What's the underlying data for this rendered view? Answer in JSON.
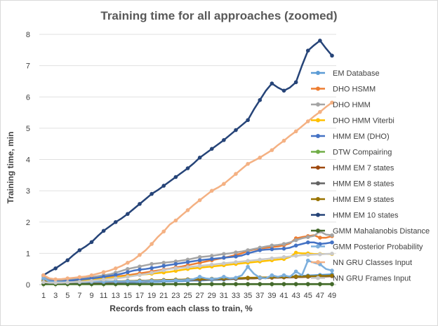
{
  "chart_data": {
    "type": "line",
    "title": "Training time for all approaches (zoomed)",
    "xlabel": "Records from each class to train, %",
    "ylabel": "Training time, min",
    "ylim": [
      0,
      8
    ],
    "yticks": [
      0,
      1,
      2,
      3,
      4,
      5,
      6,
      7,
      8
    ],
    "x": [
      1,
      2,
      3,
      4,
      5,
      6,
      7,
      8,
      9,
      10,
      11,
      12,
      13,
      14,
      15,
      16,
      17,
      18,
      19,
      20,
      21,
      22,
      23,
      24,
      25,
      26,
      27,
      28,
      29,
      30,
      31,
      32,
      33,
      34,
      35,
      36,
      37,
      38,
      39,
      40,
      41,
      42,
      43,
      44,
      45,
      46,
      47,
      48,
      49
    ],
    "xtick_labels": [
      "1",
      "3",
      "5",
      "7",
      "9",
      "11",
      "13",
      "15",
      "17",
      "19",
      "21",
      "23",
      "25",
      "27",
      "29",
      "31",
      "33",
      "35",
      "37",
      "39",
      "41",
      "43",
      "45",
      "47",
      "49"
    ],
    "grid": "horizontal",
    "legend_position": "right",
    "series": [
      {
        "name": "EM Database",
        "color": "#5b9bd5",
        "values": [
          0.12,
          0.05,
          0.03,
          0.03,
          0.03,
          0.03,
          0.03,
          0.03,
          0.04,
          0.04,
          0.05,
          0.05,
          0.05,
          0.06,
          0.07,
          0.07,
          0.08,
          0.08,
          0.09,
          0.09,
          0.1,
          0.1,
          0.11,
          0.11,
          0.12,
          0.13,
          0.13,
          0.14,
          0.15,
          0.15,
          0.16,
          0.17,
          0.18,
          0.19,
          0.2,
          0.2,
          0.21,
          0.22,
          0.23,
          0.24,
          0.25,
          0.26,
          0.27,
          0.28,
          0.29,
          0.3,
          0.31,
          0.32,
          0.33
        ]
      },
      {
        "name": "DHO HSMM",
        "color": "#ed7d31",
        "values": [
          0.3,
          0.15,
          0.12,
          0.12,
          0.13,
          0.14,
          0.15,
          0.17,
          0.19,
          0.2,
          0.22,
          0.24,
          0.26,
          0.28,
          0.3,
          0.33,
          0.36,
          0.39,
          0.42,
          0.45,
          0.48,
          0.51,
          0.55,
          0.58,
          0.62,
          0.66,
          0.7,
          0.74,
          0.78,
          0.82,
          0.86,
          0.9,
          0.95,
          1.0,
          1.08,
          1.12,
          1.15,
          1.18,
          1.2,
          1.22,
          1.26,
          1.32,
          1.48,
          1.52,
          1.55,
          1.58,
          1.5,
          1.5,
          1.55
        ]
      },
      {
        "name": "DHO HMM",
        "color": "#a5a5a5",
        "values": [
          0.25,
          0.15,
          0.15,
          0.16,
          0.17,
          0.18,
          0.2,
          0.22,
          0.24,
          0.27,
          0.3,
          0.33,
          0.38,
          0.44,
          0.5,
          0.54,
          0.58,
          0.62,
          0.66,
          0.68,
          0.7,
          0.72,
          0.74,
          0.77,
          0.8,
          0.84,
          0.88,
          0.9,
          0.92,
          0.95,
          0.98,
          1.0,
          1.03,
          1.06,
          1.1,
          1.14,
          1.18,
          1.22,
          1.25,
          1.27,
          1.3,
          1.35,
          1.42,
          1.48,
          1.52,
          1.56,
          1.7,
          1.6,
          1.58
        ]
      },
      {
        "name": "DHO HMM Viterbi",
        "color": "#ffc000",
        "values": [
          0.15,
          0.1,
          0.1,
          0.1,
          0.11,
          0.12,
          0.13,
          0.14,
          0.15,
          0.17,
          0.19,
          0.21,
          0.23,
          0.25,
          0.27,
          0.29,
          0.31,
          0.33,
          0.35,
          0.37,
          0.39,
          0.41,
          0.44,
          0.47,
          0.5,
          0.52,
          0.54,
          0.56,
          0.58,
          0.6,
          0.62,
          0.64,
          0.66,
          0.68,
          0.7,
          0.72,
          0.74,
          0.76,
          0.78,
          0.8,
          0.82,
          0.88,
          1.02,
          1.0,
          1.0,
          0.98,
          0.98,
          0.98,
          0.98
        ]
      },
      {
        "name": "HMM EM (DHO)",
        "color": "#4472c4",
        "values": [
          0.18,
          0.12,
          0.1,
          0.1,
          0.12,
          0.14,
          0.16,
          0.18,
          0.2,
          0.22,
          0.25,
          0.28,
          0.31,
          0.35,
          0.4,
          0.45,
          0.48,
          0.5,
          0.53,
          0.56,
          0.6,
          0.63,
          0.66,
          0.69,
          0.72,
          0.75,
          0.78,
          0.8,
          0.82,
          0.84,
          0.86,
          0.88,
          0.9,
          0.93,
          1.0,
          1.05,
          1.1,
          1.12,
          1.13,
          1.14,
          1.15,
          1.18,
          1.25,
          1.3,
          1.35,
          1.35,
          1.3,
          1.32,
          1.35
        ]
      },
      {
        "name": "DTW Compairing",
        "color": "#70ad47",
        "values": [
          0.01,
          0.01,
          0.01,
          0.01,
          0.01,
          0.01,
          0.01,
          0.01,
          0.01,
          0.01,
          0.01,
          0.01,
          0.01,
          0.01,
          0.01,
          0.01,
          0.01,
          0.01,
          0.01,
          0.01,
          0.01,
          0.01,
          0.01,
          0.01,
          0.01,
          0.01,
          0.01,
          0.01,
          0.01,
          0.01,
          0.01,
          0.01,
          0.01,
          0.01,
          0.01,
          0.01,
          0.01,
          0.01,
          0.01,
          0.01,
          0.01,
          0.01,
          0.01,
          0.01,
          0.01,
          0.01,
          0.01,
          0.01,
          0.01
        ]
      },
      {
        "name": "HMM EM 7 states",
        "color": "#9e480e",
        "values": [
          0.1,
          0.06,
          0.05,
          0.05,
          0.05,
          0.06,
          0.06,
          0.06,
          0.07,
          0.07,
          0.08,
          0.08,
          0.09,
          0.09,
          0.1,
          0.1,
          0.11,
          0.11,
          0.12,
          0.12,
          0.13,
          0.13,
          0.14,
          0.14,
          0.15,
          0.15,
          0.16,
          0.16,
          0.17,
          0.17,
          0.18,
          0.18,
          0.19,
          0.19,
          0.2,
          0.2,
          0.21,
          0.21,
          0.22,
          0.22,
          0.23,
          0.23,
          0.24,
          0.24,
          0.25,
          0.25,
          0.26,
          0.26,
          0.27
        ]
      },
      {
        "name": "HMM EM 8 states",
        "color": "#636363",
        "values": [
          0.11,
          0.07,
          0.06,
          0.06,
          0.06,
          0.07,
          0.07,
          0.07,
          0.08,
          0.08,
          0.09,
          0.09,
          0.1,
          0.1,
          0.11,
          0.11,
          0.12,
          0.12,
          0.13,
          0.13,
          0.14,
          0.14,
          0.15,
          0.15,
          0.16,
          0.16,
          0.17,
          0.17,
          0.18,
          0.18,
          0.19,
          0.19,
          0.2,
          0.2,
          0.21,
          0.21,
          0.22,
          0.22,
          0.23,
          0.23,
          0.24,
          0.24,
          0.25,
          0.25,
          0.26,
          0.26,
          0.27,
          0.27,
          0.28
        ]
      },
      {
        "name": "HMM EM 9 states",
        "color": "#997300",
        "values": [
          0.12,
          0.08,
          0.07,
          0.07,
          0.07,
          0.08,
          0.08,
          0.08,
          0.09,
          0.09,
          0.1,
          0.1,
          0.11,
          0.11,
          0.12,
          0.12,
          0.13,
          0.13,
          0.14,
          0.14,
          0.15,
          0.15,
          0.16,
          0.16,
          0.17,
          0.17,
          0.18,
          0.18,
          0.19,
          0.19,
          0.2,
          0.2,
          0.21,
          0.21,
          0.22,
          0.22,
          0.23,
          0.23,
          0.24,
          0.24,
          0.25,
          0.25,
          0.26,
          0.26,
          0.27,
          0.27,
          0.28,
          0.28,
          0.29
        ]
      },
      {
        "name": "HMM EM 10 states",
        "color": "#264478",
        "values": [
          0.3,
          0.42,
          0.52,
          0.65,
          0.78,
          0.95,
          1.1,
          1.22,
          1.36,
          1.55,
          1.72,
          1.86,
          2.0,
          2.12,
          2.26,
          2.42,
          2.58,
          2.74,
          2.9,
          3.02,
          3.16,
          3.3,
          3.44,
          3.58,
          3.72,
          3.88,
          4.06,
          4.2,
          4.34,
          4.48,
          4.62,
          4.78,
          4.94,
          5.1,
          5.26,
          5.6,
          5.9,
          6.2,
          6.43,
          6.3,
          6.2,
          6.3,
          6.47,
          7.0,
          7.48,
          7.65,
          7.8,
          7.55,
          7.32
        ]
      },
      {
        "name": "GMM Mahalanobis Distance",
        "color": "#43682b",
        "values": [
          0.02,
          0.02,
          0.02,
          0.02,
          0.02,
          0.02,
          0.02,
          0.02,
          0.02,
          0.02,
          0.02,
          0.02,
          0.02,
          0.02,
          0.02,
          0.02,
          0.02,
          0.02,
          0.02,
          0.02,
          0.02,
          0.02,
          0.02,
          0.02,
          0.02,
          0.02,
          0.02,
          0.02,
          0.02,
          0.02,
          0.02,
          0.02,
          0.02,
          0.02,
          0.02,
          0.02,
          0.02,
          0.02,
          0.02,
          0.02,
          0.02,
          0.02,
          0.02,
          0.02,
          0.02,
          0.02,
          0.02,
          0.02,
          0.02
        ]
      },
      {
        "name": "GMM Posterior Probability",
        "color": "#7cafdd",
        "values": [
          0.2,
          0.1,
          0.08,
          0.08,
          0.08,
          0.08,
          0.08,
          0.08,
          0.09,
          0.09,
          0.09,
          0.1,
          0.1,
          0.1,
          0.11,
          0.11,
          0.11,
          0.12,
          0.12,
          0.12,
          0.13,
          0.13,
          0.14,
          0.14,
          0.15,
          0.18,
          0.25,
          0.2,
          0.18,
          0.2,
          0.25,
          0.2,
          0.22,
          0.3,
          0.57,
          0.35,
          0.22,
          0.2,
          0.3,
          0.25,
          0.3,
          0.25,
          0.42,
          0.3,
          0.77,
          0.7,
          0.65,
          0.5,
          0.45
        ]
      },
      {
        "name": "NN GRU Classes Input",
        "color": "#f4b183",
        "values": [
          0.3,
          0.2,
          0.17,
          0.18,
          0.2,
          0.22,
          0.24,
          0.26,
          0.3,
          0.35,
          0.4,
          0.45,
          0.52,
          0.6,
          0.7,
          0.8,
          0.95,
          1.1,
          1.3,
          1.52,
          1.7,
          1.92,
          2.05,
          2.22,
          2.38,
          2.55,
          2.7,
          2.85,
          3.0,
          3.1,
          3.22,
          3.38,
          3.54,
          3.7,
          3.86,
          3.96,
          4.06,
          4.18,
          4.3,
          4.46,
          4.6,
          4.76,
          4.9,
          5.06,
          5.22,
          5.38,
          5.52,
          5.68,
          5.82
        ]
      },
      {
        "name": "NN GRU Frames Input",
        "color": "#c9c9c9",
        "values": [
          0.08,
          0.06,
          0.06,
          0.06,
          0.07,
          0.08,
          0.09,
          0.1,
          0.12,
          0.14,
          0.16,
          0.18,
          0.2,
          0.22,
          0.25,
          0.28,
          0.31,
          0.34,
          0.38,
          0.42,
          0.46,
          0.5,
          0.52,
          0.54,
          0.56,
          0.58,
          0.6,
          0.62,
          0.64,
          0.66,
          0.68,
          0.7,
          0.72,
          0.74,
          0.76,
          0.78,
          0.8,
          0.82,
          0.84,
          0.86,
          0.88,
          0.9,
          0.92,
          0.94,
          0.95,
          0.96,
          0.97,
          0.98,
          0.99
        ]
      }
    ]
  }
}
